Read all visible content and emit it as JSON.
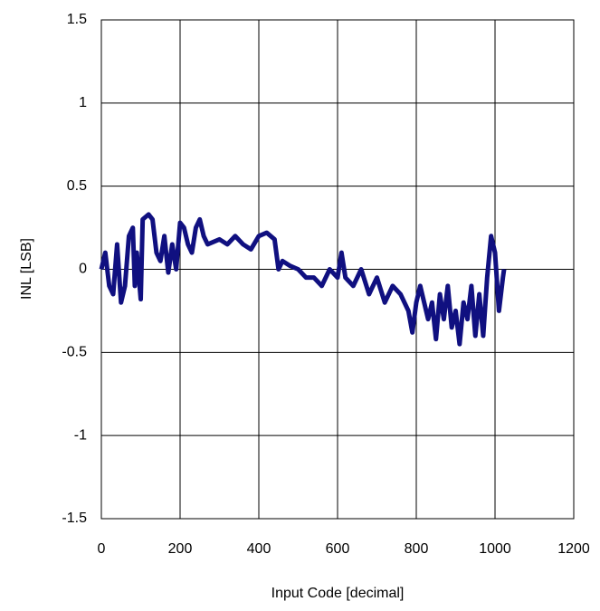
{
  "chart_data": {
    "type": "line",
    "xlabel": "Input Code [decimal]",
    "ylabel": "INL [LSB]",
    "x": [
      0,
      10,
      20,
      30,
      40,
      50,
      60,
      70,
      80,
      85,
      90,
      100,
      105,
      120,
      130,
      140,
      150,
      160,
      170,
      180,
      190,
      200,
      210,
      220,
      230,
      240,
      250,
      260,
      270,
      300,
      320,
      340,
      360,
      380,
      400,
      420,
      440,
      450,
      460,
      480,
      500,
      520,
      540,
      560,
      580,
      600,
      610,
      620,
      640,
      660,
      680,
      700,
      720,
      740,
      760,
      780,
      790,
      800,
      810,
      820,
      830,
      840,
      850,
      860,
      870,
      880,
      890,
      900,
      910,
      920,
      930,
      940,
      950,
      960,
      970,
      980,
      990,
      1000,
      1010,
      1020,
      1023
    ],
    "series": [
      {
        "name": "INL",
        "color": "#101080",
        "values": [
          0,
          0.1,
          -0.1,
          -0.15,
          0.15,
          -0.2,
          -0.1,
          0.2,
          0.25,
          -0.1,
          0.1,
          -0.18,
          0.3,
          0.33,
          0.3,
          0.1,
          0.05,
          0.2,
          -0.02,
          0.15,
          0,
          0.28,
          0.25,
          0.15,
          0.1,
          0.25,
          0.3,
          0.2,
          0.15,
          0.18,
          0.15,
          0.2,
          0.15,
          0.12,
          0.2,
          0.22,
          0.18,
          0,
          0.05,
          0.02,
          0,
          -0.05,
          -0.05,
          -0.1,
          0,
          -0.05,
          0.1,
          -0.05,
          -0.1,
          0,
          -0.15,
          -0.05,
          -0.2,
          -0.1,
          -0.15,
          -0.25,
          -0.38,
          -0.2,
          -0.1,
          -0.2,
          -0.3,
          -0.2,
          -0.42,
          -0.15,
          -0.3,
          -0.1,
          -0.35,
          -0.25,
          -0.45,
          -0.2,
          -0.3,
          -0.1,
          -0.4,
          -0.15,
          -0.4,
          -0.05,
          0.2,
          0.1,
          -0.25,
          -0.05,
          0
        ]
      }
    ],
    "xlim": [
      0,
      1200
    ],
    "xticks": [
      0,
      200,
      400,
      600,
      800,
      1000,
      1200
    ],
    "ylim": [
      -1.5,
      1.5
    ],
    "yticks": [
      1.5,
      1,
      0.5,
      0,
      -0.5,
      -1,
      -1.5
    ],
    "grid": true
  }
}
